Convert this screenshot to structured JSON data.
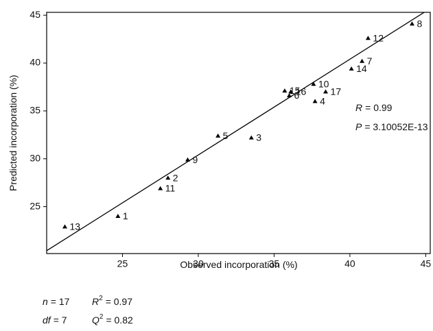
{
  "chart_data": {
    "type": "scatter",
    "x_label": "Observed incorporation (%)",
    "y_label": "Predicted incorporation (%)",
    "xlim": [
      20,
      45.3
    ],
    "ylim": [
      20.1,
      45.3
    ],
    "xticks": [
      25,
      30,
      35,
      40,
      45
    ],
    "yticks": [
      25,
      30,
      35,
      40,
      45
    ],
    "color": "#000000",
    "labels": [
      "1",
      "2",
      "3",
      "4",
      "5",
      "6",
      "7",
      "8",
      "9",
      "10",
      "11",
      "12",
      "13",
      "14",
      "15",
      "16",
      "17"
    ],
    "x": [
      24.7,
      28.0,
      33.5,
      37.7,
      31.3,
      36.0,
      40.8,
      44.1,
      29.3,
      37.6,
      27.5,
      41.2,
      21.2,
      40.1,
      35.7,
      36.1,
      38.4
    ],
    "y": [
      24.0,
      28.0,
      32.2,
      36.0,
      32.4,
      36.6,
      40.2,
      44.1,
      29.9,
      37.8,
      26.9,
      42.6,
      22.9,
      39.4,
      37.1,
      37.0,
      37.0
    ],
    "fit_line": {
      "x": [
        20,
        45.3
      ],
      "y": [
        20.4,
        45.7
      ]
    },
    "annotations": [
      {
        "symbol": "R",
        "text": "= 0.99"
      },
      {
        "symbol": "P",
        "text": "= 3.10052E-13"
      }
    ],
    "stats": [
      [
        {
          "symbol": "n",
          "text": "= 17"
        },
        {
          "symbol": "R",
          "sup": "2",
          "text": "= 0.97"
        }
      ],
      [
        {
          "symbol": "df",
          "text": "= 7"
        },
        {
          "symbol": "Q",
          "sup": "2",
          "text": "= 0.82"
        }
      ]
    ]
  }
}
